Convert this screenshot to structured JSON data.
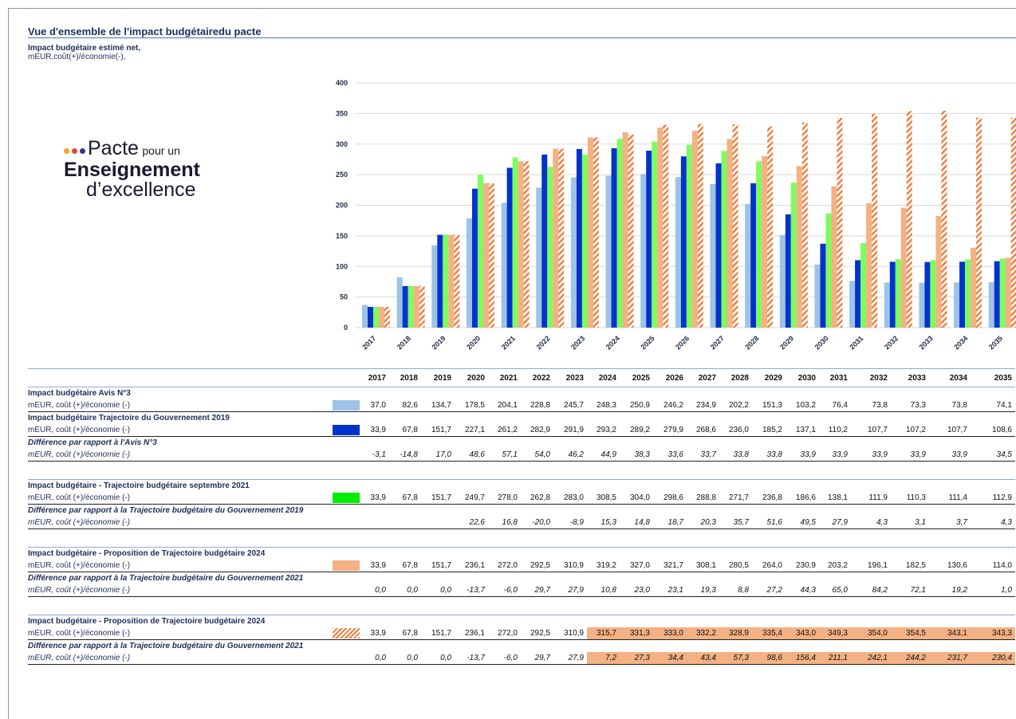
{
  "header": {
    "title": "Vue d'ensemble de l'impact budgétairedu pacte",
    "subtitle": "Impact budgétaire estimé net,",
    "unit": "mEUR,coût(+)/économie(-),"
  },
  "logo": {
    "word": "Pacte",
    "small": "pour un",
    "line2": "Enseignement",
    "line3": "d’excellence"
  },
  "chart_data": {
    "type": "bar",
    "categories": [
      "2017",
      "2018",
      "2019",
      "2020",
      "2021",
      "2022",
      "2023",
      "2024",
      "2025",
      "2026",
      "2027",
      "2028",
      "2029",
      "2030",
      "2031",
      "2032",
      "2033",
      "2034",
      "2035"
    ],
    "series": [
      {
        "color": "#9dc3e6",
        "values": [
          37.0,
          82.6,
          134.7,
          178.5,
          204.1,
          228.8,
          245.7,
          248.3,
          250.9,
          246.2,
          234.9,
          202.2,
          151.3,
          103.2,
          76.4,
          73.8,
          73.3,
          73.8,
          74.1
        ]
      },
      {
        "color": "#0033cc",
        "values": [
          33.9,
          67.8,
          151.7,
          227.1,
          261.2,
          282.9,
          291.9,
          293.2,
          289.2,
          279.9,
          268.6,
          236.0,
          185.2,
          137.1,
          110.2,
          107.7,
          107.2,
          107.7,
          108.6
        ]
      },
      {
        "color": "#7dfc5e",
        "values": [
          33.9,
          67.8,
          151.7,
          249.7,
          278.0,
          262.8,
          283.0,
          308.5,
          304.0,
          298.6,
          288.8,
          271.7,
          236.8,
          186.6,
          138.1,
          111.9,
          110.3,
          111.4,
          112.9
        ]
      },
      {
        "color": "#f4b183",
        "values": [
          33.9,
          67.8,
          151.7,
          236.1,
          272.0,
          292.5,
          310.9,
          319.2,
          327.0,
          321.7,
          308.1,
          280.5,
          264.0,
          230.9,
          203.2,
          196.1,
          182.5,
          130.6,
          114.0
        ]
      },
      {
        "color": "#f07c3c",
        "hatch": true,
        "values": [
          33.9,
          67.8,
          151.7,
          236.1,
          272.0,
          292.5,
          310.9,
          315.7,
          331.3,
          333.0,
          332.2,
          328.9,
          335.4,
          343.0,
          349.3,
          354.0,
          354.5,
          343.1,
          343.3
        ]
      }
    ],
    "ylim": [
      0,
      400
    ],
    "yticks": [
      0,
      50,
      100,
      150,
      200,
      250,
      300,
      350,
      400
    ],
    "grid": true
  },
  "table": {
    "years": [
      "2017",
      "2018",
      "2019",
      "2020",
      "2021",
      "2022",
      "2023",
      "2024",
      "2025",
      "2026",
      "2027",
      "2028",
      "2029",
      "2030",
      "2031",
      "2032",
      "2033",
      "2034",
      "2035"
    ],
    "blocks": [
      {
        "rows": [
          {
            "label": "Impact budgétaire Avis N°3"
          },
          {
            "label": "mEUR, coût (+)/économie (-)",
            "swatch": "#9dc3e6",
            "values": [
              "37,0",
              "82,6",
              "134,7",
              "178,5",
              "204,1",
              "228,8",
              "245,7",
              "248,3",
              "250,9",
              "246,2",
              "234,9",
              "202,2",
              "151,3",
              "103,2",
              "76,4",
              "73,8",
              "73,3",
              "73,8",
              "74,1"
            ]
          },
          {
            "label": "Impact budgétaire Trajectoire du Gouvernement 2019"
          },
          {
            "label": "mEUR, coût (+)/économie (-)",
            "swatch": "#0033cc",
            "values": [
              "33,9",
              "67,8",
              "151,7",
              "227,1",
              "261,2",
              "282,9",
              "291,9",
              "293,2",
              "289,2",
              "279,9",
              "268,6",
              "236,0",
              "185,2",
              "137,1",
              "110,2",
              "107,7",
              "107,2",
              "107,7",
              "108,6"
            ]
          },
          {
            "label": "Différence par rapport à l'Avis N°3",
            "italic": true
          },
          {
            "label": "mEUR, coût (+)/économie (-)",
            "italic": true,
            "values": [
              "-3,1",
              "-14,8",
              "17,0",
              "48,6",
              "57,1",
              "54,0",
              "46,2",
              "44,9",
              "38,3",
              "33,6",
              "33,7",
              "33,8",
              "33,8",
              "33,9",
              "33,9",
              "33,9",
              "33,9",
              "33,9",
              "34,5"
            ]
          }
        ]
      },
      {
        "rows": [
          {
            "label": "Impact budgétaire - Trajectoire budgétaire septembre 2021"
          },
          {
            "label": "mEUR, coût (+)/économie (-)",
            "swatch": "#00ee00",
            "values": [
              "33,9",
              "67,8",
              "151,7",
              "249,7",
              "278,0",
              "262,8",
              "283,0",
              "308,5",
              "304,0",
              "298,6",
              "288,8",
              "271,7",
              "236,8",
              "186,6",
              "138,1",
              "111,9",
              "110,3",
              "111,4",
              "112,9"
            ]
          },
          {
            "label": "Différence par rapport à la Trajectoire budgétaire du Gouvernement 2019",
            "italic": true
          },
          {
            "label": "mEUR, coût (+)/économie (-)",
            "italic": true,
            "values": [
              null,
              null,
              null,
              "22,6",
              "16,8",
              "-20,0",
              "-8,9",
              "15,3",
              "14,8",
              "18,7",
              "20,3",
              "35,7",
              "51,6",
              "49,5",
              "27,9",
              "4,3",
              "3,1",
              "3,7",
              "4,3"
            ]
          }
        ]
      },
      {
        "rows": [
          {
            "label": "Impact budgétaire - Proposition de Trajectoire budgétaire 2024"
          },
          {
            "label": "mEUR, coût (+)/économie (-)",
            "swatch": "#f4b183",
            "values": [
              "33,9",
              "67,8",
              "151,7",
              "236,1",
              "272,0",
              "292,5",
              "310,9",
              "319,2",
              "327,0",
              "321,7",
              "308,1",
              "280,5",
              "264,0",
              "230,9",
              "203,2",
              "196,1",
              "182,5",
              "130,6",
              "114,0"
            ]
          },
          {
            "label": "Différence par rapport à la Trajectoire budgétaire du Gouvernement 2021",
            "italic": true
          },
          {
            "label": "mEUR, coût (+)/économie (-)",
            "italic": true,
            "values": [
              "0,0",
              "0,0",
              "0,0",
              "-13,7",
              "-6,0",
              "29,7",
              "27,9",
              "10,8",
              "23,0",
              "23,1",
              "19,3",
              "8,8",
              "27,2",
              "44,3",
              "65,0",
              "84,2",
              "72,1",
              "19,2",
              "1,0"
            ]
          }
        ]
      },
      {
        "highlight_color": "#f4b183",
        "highlight_from": "2024",
        "rows": [
          {
            "label": "Impact budgétaire - Proposition de Trajectoire budgétaire 2024"
          },
          {
            "label": "mEUR, coût (+)/économie (-)",
            "swatch": "#f07c3c",
            "hatch": true,
            "values": [
              "33,9",
              "67,8",
              "151,7",
              "236,1",
              "272,0",
              "292,5",
              "310,9",
              "315,7",
              "331,3",
              "333,0",
              "332,2",
              "328,9",
              "335,4",
              "343,0",
              "349,3",
              "354,0",
              "354,5",
              "343,1",
              "343,3"
            ]
          },
          {
            "label": "Différence par rapport à la Trajectoire budgétaire du Gouvernement 2021",
            "italic": true
          },
          {
            "label": "mEUR, coût (+)/économie (-)",
            "italic": true,
            "values": [
              "0,0",
              "0,0",
              "0,0",
              "-13,7",
              "-6,0",
              "29,7",
              "27,9",
              "7,2",
              "27,3",
              "34,4",
              "43,4",
              "57,3",
              "98,6",
              "156,4",
              "211,1",
              "242,1",
              "244,2",
              "231,7",
              "230,4"
            ]
          }
        ]
      }
    ]
  }
}
